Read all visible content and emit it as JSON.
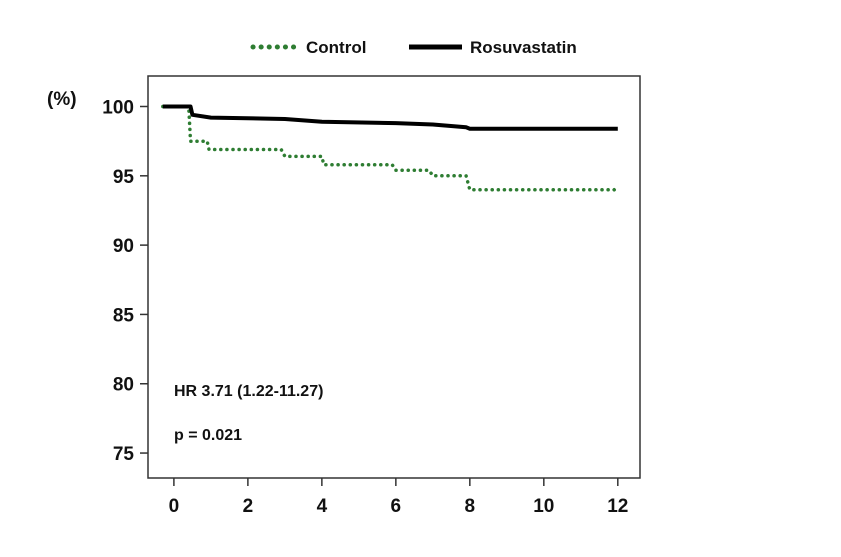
{
  "chart_data": {
    "type": "line",
    "xlim": [
      -0.7,
      12.6
    ],
    "ylim": [
      73.2,
      102.2
    ],
    "x_ticks": [
      0,
      2,
      4,
      6,
      8,
      10,
      12
    ],
    "y_ticks": [
      75,
      80,
      85,
      90,
      95,
      100
    ],
    "y_tick_labels": [
      "75",
      "80",
      "85",
      "90",
      "95",
      "100"
    ],
    "ylabel_fragment": "(%)",
    "grid": false,
    "legend_position": "top",
    "series": [
      {
        "name": "Control",
        "color": "#2e7d32",
        "style": "dotted",
        "points": [
          [
            -0.3,
            100
          ],
          [
            0.4,
            100
          ],
          [
            0.45,
            97.5
          ],
          [
            0.9,
            97.5
          ],
          [
            0.95,
            96.9
          ],
          [
            2.9,
            96.9
          ],
          [
            3.0,
            96.4
          ],
          [
            4.0,
            96.4
          ],
          [
            4.05,
            95.8
          ],
          [
            5.9,
            95.8
          ],
          [
            6.0,
            95.4
          ],
          [
            6.9,
            95.4
          ],
          [
            7.0,
            95.0
          ],
          [
            7.9,
            95.0
          ],
          [
            8.0,
            94.0
          ],
          [
            11.9,
            94.0
          ],
          [
            12.0,
            93.7
          ]
        ]
      },
      {
        "name": "Rosuvastatin",
        "color": "#000000",
        "style": "solid",
        "points": [
          [
            -0.3,
            100
          ],
          [
            0.45,
            100
          ],
          [
            0.5,
            99.4
          ],
          [
            1.0,
            99.2
          ],
          [
            3.0,
            99.1
          ],
          [
            4.0,
            98.9
          ],
          [
            6.0,
            98.8
          ],
          [
            7.0,
            98.7
          ],
          [
            7.9,
            98.5
          ],
          [
            8.0,
            98.4
          ],
          [
            12.0,
            98.4
          ]
        ]
      }
    ],
    "annotations": [
      "HR 3.71 (1.22-11.27)",
      "p = 0.021"
    ]
  }
}
